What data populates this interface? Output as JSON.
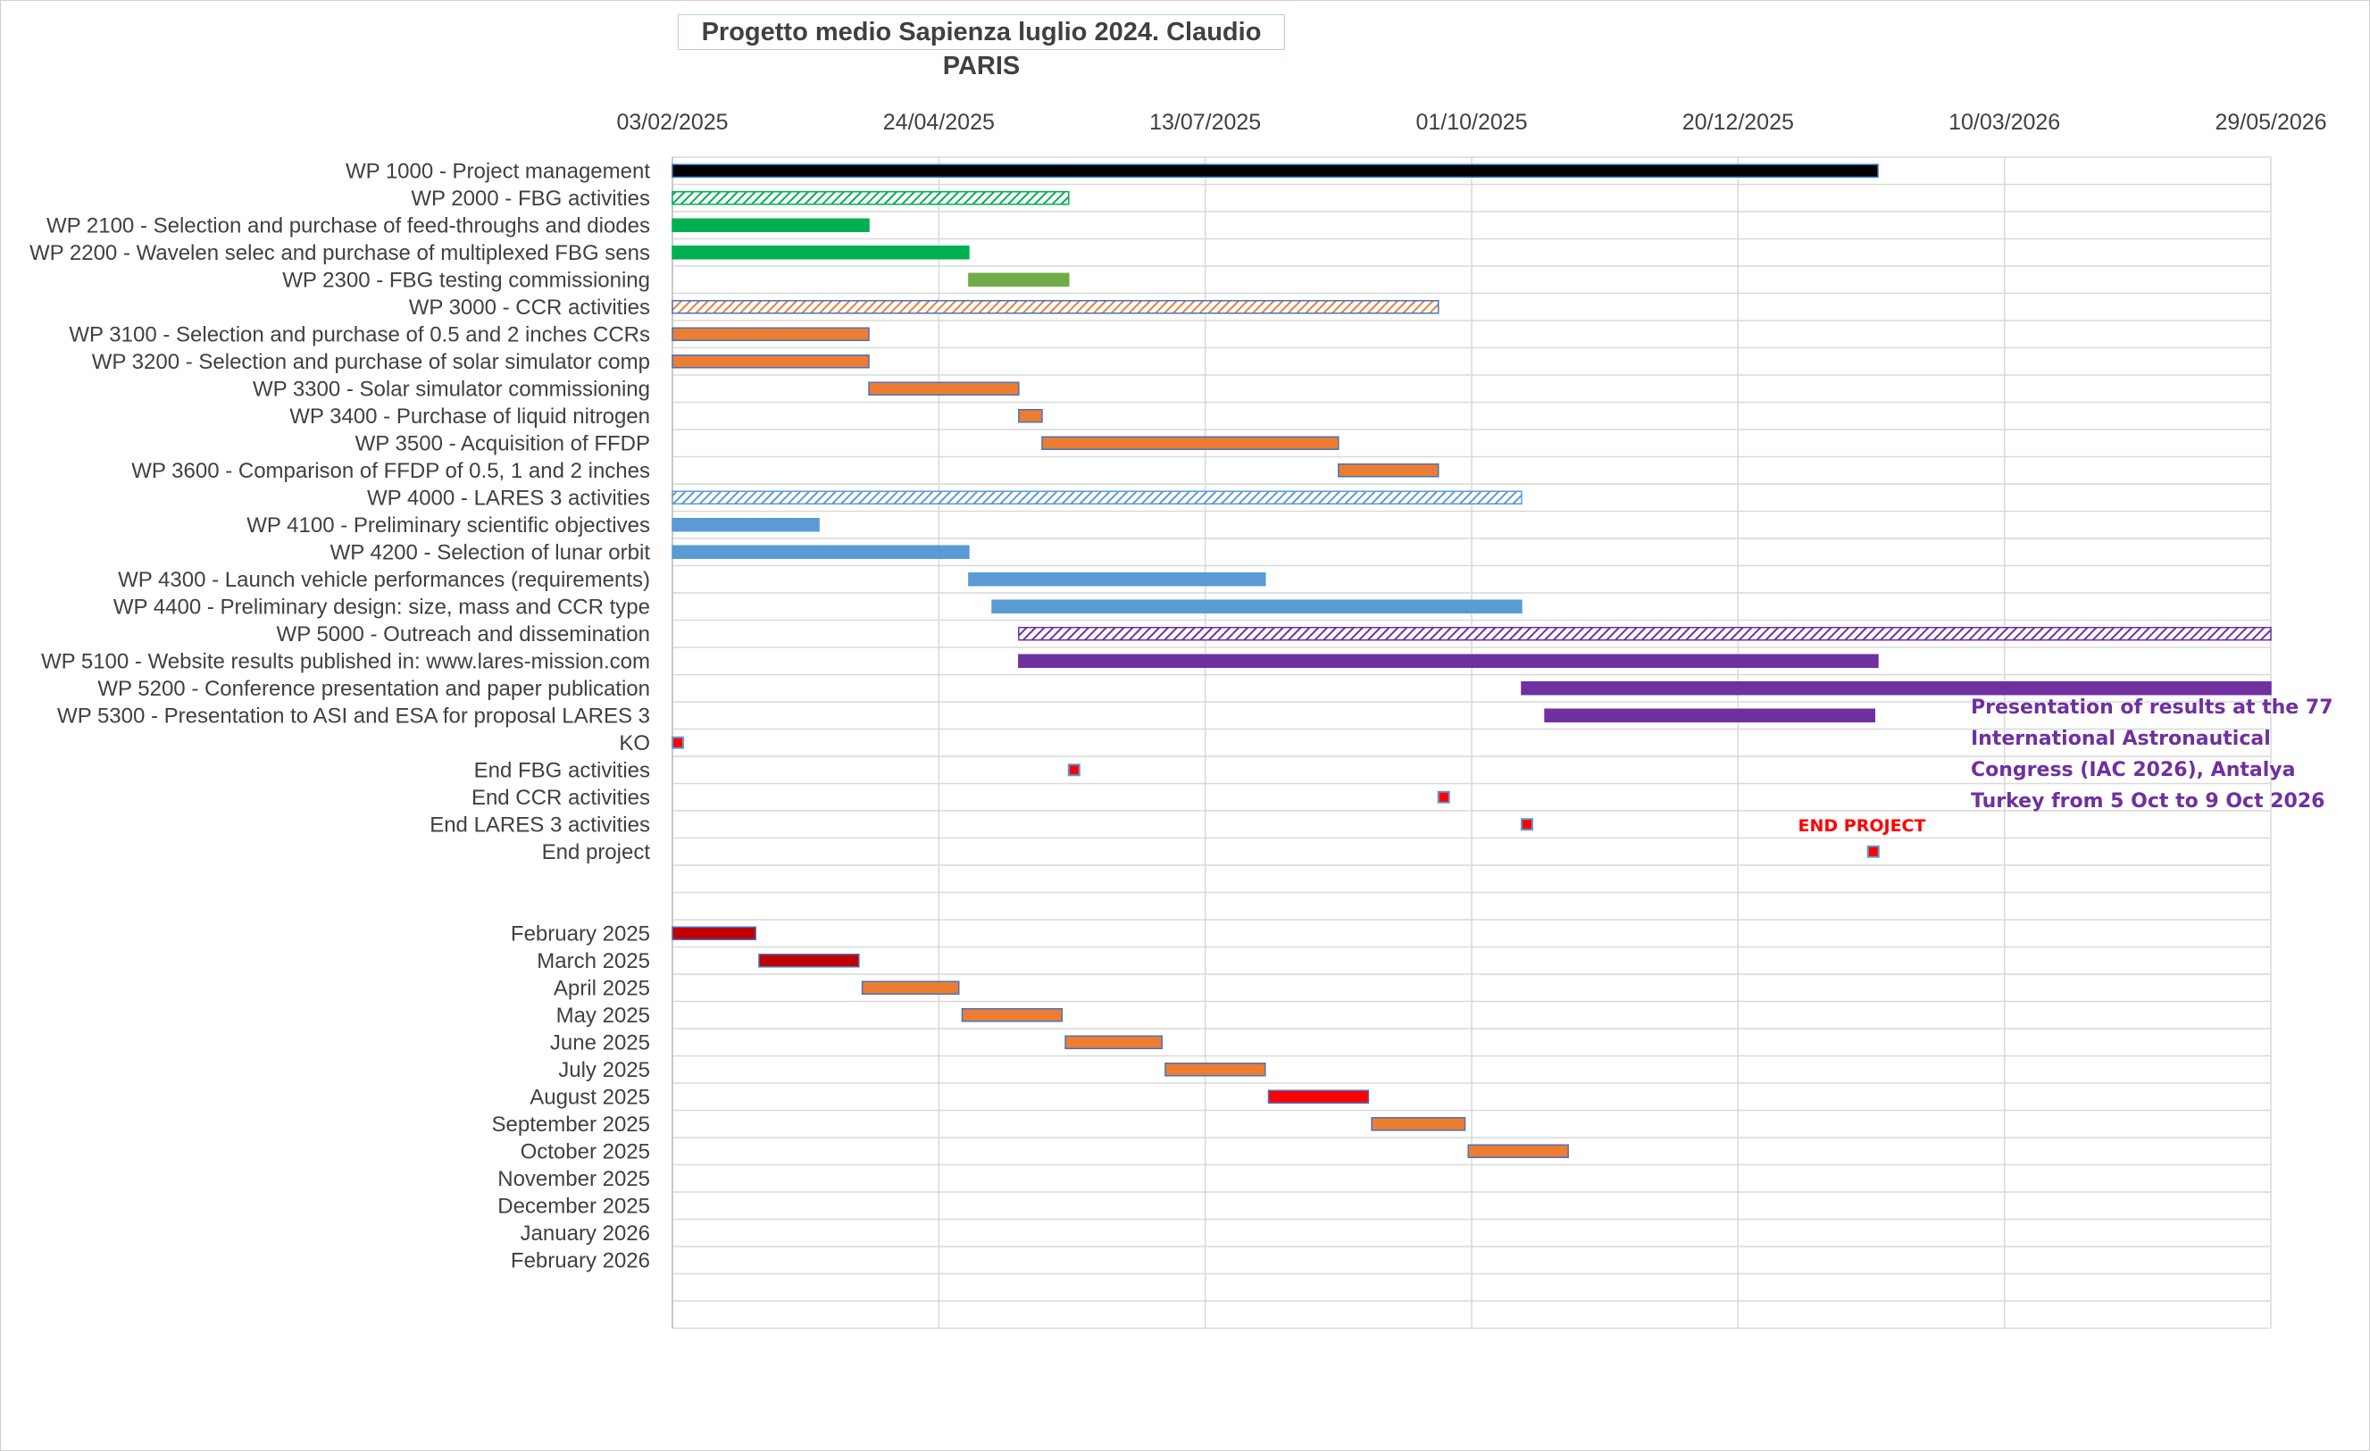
{
  "title": "Progetto medio Sapienza luglio 2024. Claudio PARIS",
  "chart_data": {
    "type": "bar",
    "orientation": "horizontal",
    "subtype": "gantt",
    "x_axis": {
      "position": "top",
      "min": "2025-02-03",
      "max": "2026-05-29",
      "tick_labels": [
        "03/02/2025",
        "24/04/2025",
        "13/07/2025",
        "01/10/2025",
        "20/12/2025",
        "10/03/2026",
        "29/05/2026"
      ],
      "grid": true
    },
    "rows": [
      {
        "label": "WP 1000 - Project management",
        "start": "2025-02-03",
        "end": "2026-01-31",
        "style": "solid",
        "color": "#000000"
      },
      {
        "label": "WP 2000 - FBG activities",
        "start": "2025-02-03",
        "end": "2025-06-02",
        "style": "hatched",
        "color": "#00b050"
      },
      {
        "label": "WP 2100 - Selection and purchase of feed-throughs and diodes",
        "start": "2025-02-03",
        "end": "2025-04-03",
        "style": "solid",
        "color": "#00b050"
      },
      {
        "label": "WP 2200 - Wavelen selec and purchase of multiplexed FBG sens",
        "start": "2025-02-03",
        "end": "2025-05-03",
        "style": "solid",
        "color": "#00b050"
      },
      {
        "label": "WP 2300 - FBG testing commissioning",
        "start": "2025-05-03",
        "end": "2025-06-02",
        "style": "solid",
        "color": "#70ad47"
      },
      {
        "label": "WP 3000 - CCR activities",
        "start": "2025-02-03",
        "end": "2025-09-21",
        "style": "hatched",
        "color": "#ed7d31"
      },
      {
        "label": "WP 3100 - Selection and purchase of 0.5 and 2 inches CCRs",
        "start": "2025-02-03",
        "end": "2025-04-03",
        "style": "solid",
        "color": "#ed7d31"
      },
      {
        "label": "WP 3200 - Selection and purchase of solar simulator comp",
        "start": "2025-02-03",
        "end": "2025-04-03",
        "style": "solid",
        "color": "#ed7d31"
      },
      {
        "label": "WP 3300 - Solar simulator commissioning",
        "start": "2025-04-03",
        "end": "2025-05-18",
        "style": "solid",
        "color": "#ed7d31"
      },
      {
        "label": "WP 3400 - Purchase of liquid nitrogen",
        "start": "2025-05-18",
        "end": "2025-05-25",
        "style": "solid",
        "color": "#ed7d31"
      },
      {
        "label": "WP 3500 - Acquisition of FFDP",
        "start": "2025-05-25",
        "end": "2025-08-22",
        "style": "solid",
        "color": "#ed7d31"
      },
      {
        "label": "WP 3600 - Comparison of FFDP of 0.5, 1 and 2 inches ",
        "start": "2025-08-22",
        "end": "2025-09-21",
        "style": "solid",
        "color": "#ed7d31"
      },
      {
        "label": "WP 4000 - LARES 3 activities",
        "start": "2025-02-03",
        "end": "2025-10-16",
        "style": "hatched",
        "color": "#5b9bd5"
      },
      {
        "label": "WP 4100 - Preliminary scientific objectives",
        "start": "2025-02-03",
        "end": "2025-03-19",
        "style": "solid",
        "color": "#5b9bd5"
      },
      {
        "label": "WP 4200 - Selection of lunar orbit",
        "start": "2025-02-03",
        "end": "2025-05-03",
        "style": "solid",
        "color": "#5b9bd5"
      },
      {
        "label": "WP 4300 - Launch vehicle performances (requirements)",
        "start": "2025-05-03",
        "end": "2025-07-31",
        "style": "solid",
        "color": "#5b9bd5"
      },
      {
        "label": "WP 4400 - Preliminary design: size, mass and CCR type",
        "start": "2025-05-10",
        "end": "2025-10-16",
        "style": "solid",
        "color": "#5b9bd5"
      },
      {
        "label": "WP 5000 - Outreach and dissemination",
        "start": "2025-05-18",
        "end": "2026-05-29",
        "style": "hatched",
        "color": "#7030a0"
      },
      {
        "label": "WP 5100 - Website results published in: www.lares-mission.com",
        "start": "2025-05-18",
        "end": "2026-01-31",
        "style": "solid",
        "color": "#7030a0"
      },
      {
        "label": "WP 5200 - Conference presentation and paper publication",
        "start": "2025-10-16",
        "end": "2026-05-29",
        "style": "solid",
        "color": "#7030a0"
      },
      {
        "label": "WP 5300 - Presentation to ASI and ESA for proposal LARES 3",
        "start": "2025-10-23",
        "end": "2026-01-30",
        "style": "solid",
        "color": "#7030a0"
      },
      {
        "label": "KO",
        "start": "2025-02-03",
        "end": "2025-02-06",
        "style": "milestone",
        "color": "#ff0000"
      },
      {
        "label": "End FBG activities",
        "start": "2025-06-02",
        "end": "2025-06-05",
        "style": "milestone",
        "color": "#ff0000"
      },
      {
        "label": "End CCR activities",
        "start": "2025-09-21",
        "end": "2025-09-24",
        "style": "milestone",
        "color": "#ff0000"
      },
      {
        "label": "End LARES 3 activities",
        "start": "2025-10-16",
        "end": "2025-10-19",
        "style": "milestone",
        "color": "#ff0000"
      },
      {
        "label": "End project",
        "start": "2026-01-28",
        "end": "2026-01-31",
        "style": "milestone",
        "color": "#ff0000"
      },
      {
        "label": "",
        "start": null,
        "end": null
      },
      {
        "label": "",
        "start": null,
        "end": null
      },
      {
        "label": "February 2025",
        "start": "2025-02-03",
        "end": "2025-02-28",
        "style": "solid",
        "color": "#c00000"
      },
      {
        "label": "March 2025",
        "start": "2025-03-01",
        "end": "2025-03-31",
        "style": "solid",
        "color": "#c00000"
      },
      {
        "label": "April 2025",
        "start": "2025-04-01",
        "end": "2025-04-30",
        "style": "solid",
        "color": "#ed7d31"
      },
      {
        "label": "May 2025",
        "start": "2025-05-01",
        "end": "2025-05-31",
        "style": "solid",
        "color": "#ed7d31"
      },
      {
        "label": "June 2025",
        "start": "2025-06-01",
        "end": "2025-06-30",
        "style": "solid",
        "color": "#ed7d31"
      },
      {
        "label": "July 2025",
        "start": "2025-07-01",
        "end": "2025-07-31",
        "style": "solid",
        "color": "#ed7d31"
      },
      {
        "label": "August 2025",
        "start": "2025-08-01",
        "end": "2025-08-31",
        "style": "solid",
        "color": "#ff0000"
      },
      {
        "label": "September 2025",
        "start": "2025-09-01",
        "end": "2025-09-29",
        "style": "solid",
        "color": "#ed7d31"
      },
      {
        "label": "October 2025",
        "start": "2025-09-30",
        "end": "2025-10-30",
        "style": "solid",
        "color": "#ed7d31"
      },
      {
        "label": "November 2025",
        "start": null,
        "end": null
      },
      {
        "label": "December 2025",
        "start": null,
        "end": null
      },
      {
        "label": "January 2026",
        "start": null,
        "end": null
      },
      {
        "label": "February 2026",
        "start": null,
        "end": null
      },
      {
        "label": "",
        "start": null,
        "end": null
      },
      {
        "label": "",
        "start": null,
        "end": null
      }
    ],
    "annotations": [
      {
        "text": "Presentation of results at the 77",
        "color": "#7030a0"
      },
      {
        "text": "International Astronautical",
        "color": "#7030a0"
      },
      {
        "text": "Congress (IAC 2026), Antalya",
        "color": "#7030a0"
      },
      {
        "text": "Turkey from 5 Oct to 9 Oct 2026",
        "color": "#7030a0"
      },
      {
        "text": "END PROJECT",
        "color": "#ff0000"
      }
    ]
  }
}
